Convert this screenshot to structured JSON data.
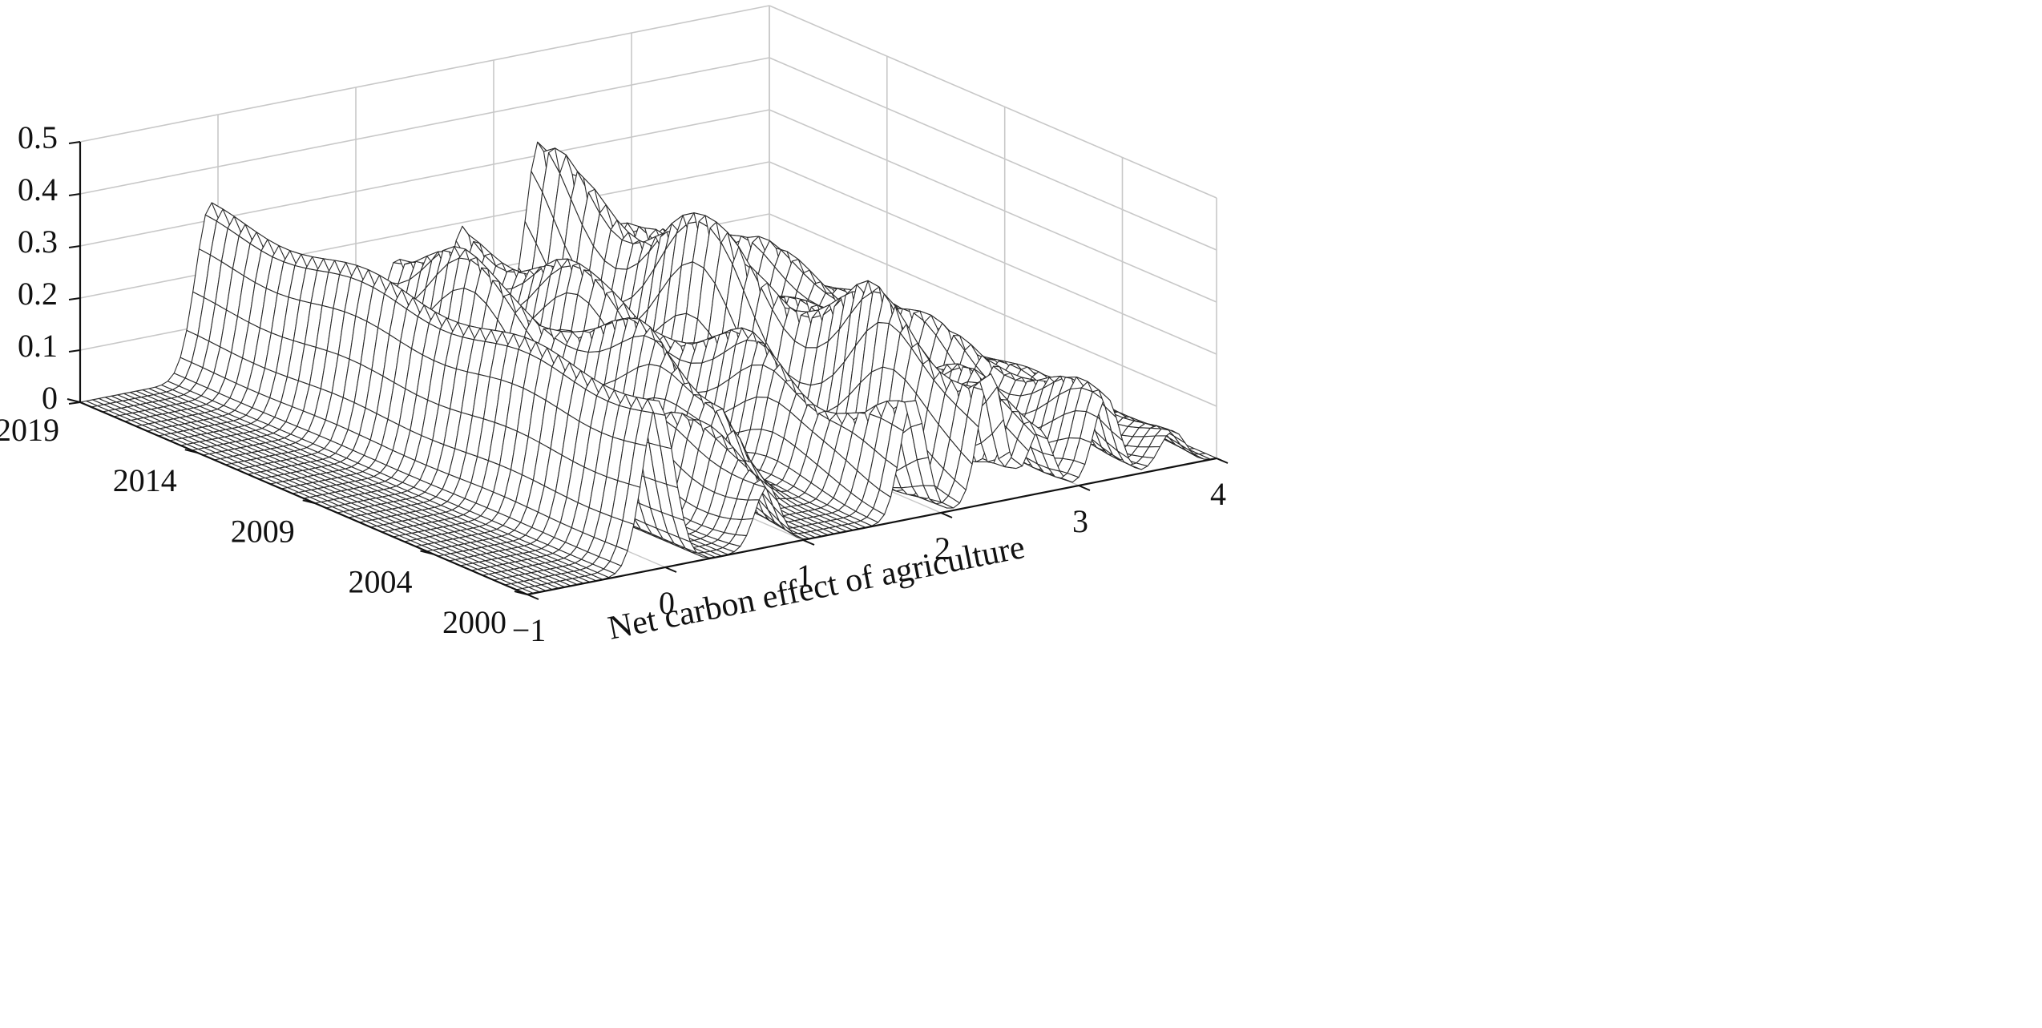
{
  "chart_data": {
    "type": "surface",
    "title": "",
    "xlabel": "Net carbon effect of agriculture",
    "ylabel": "",
    "zlabel": "",
    "xlim": [
      -1,
      4
    ],
    "ylim": [
      2000,
      2019
    ],
    "zlim": [
      0,
      0.5
    ],
    "x_ticks": [
      "−1",
      "0",
      "1",
      "2",
      "3",
      "4"
    ],
    "y_ticks": [
      "2000",
      "2004",
      "2009",
      "2014",
      "2019"
    ],
    "z_ticks": [
      "0",
      "0.1",
      "0.2",
      "0.3",
      "0.4",
      "0.5"
    ],
    "grid": true,
    "colors": {
      "surface_fill": "#ffffff",
      "mesh_line": "#2a2a2a",
      "grid_line": "#c8c8c8",
      "axis_line": "#111111"
    },
    "density_peaks": [
      {
        "x": -0.05,
        "year_start": 2000,
        "year_end": 2019,
        "height": 0.32,
        "note_type": "main ridge"
      },
      {
        "x": 0.75,
        "year_start": 2000,
        "year_end": 2019,
        "height": 0.15
      },
      {
        "x": 1.25,
        "year_start": 2005,
        "year_end": 2019,
        "height": 0.2
      },
      {
        "x": 1.75,
        "year_start": 2000,
        "year_end": 2019,
        "height": 0.19
      },
      {
        "x": 2.35,
        "year_start": 2000,
        "year_end": 2019,
        "height": 0.27
      },
      {
        "x": 2.75,
        "year_start": 2000,
        "year_end": 2019,
        "height": 0.15
      },
      {
        "x": 3.25,
        "year_start": 2000,
        "year_end": 2019,
        "height": 0.14
      },
      {
        "x": 3.7,
        "year_start": 2000,
        "year_end": 2019,
        "height": 0.06
      }
    ]
  }
}
